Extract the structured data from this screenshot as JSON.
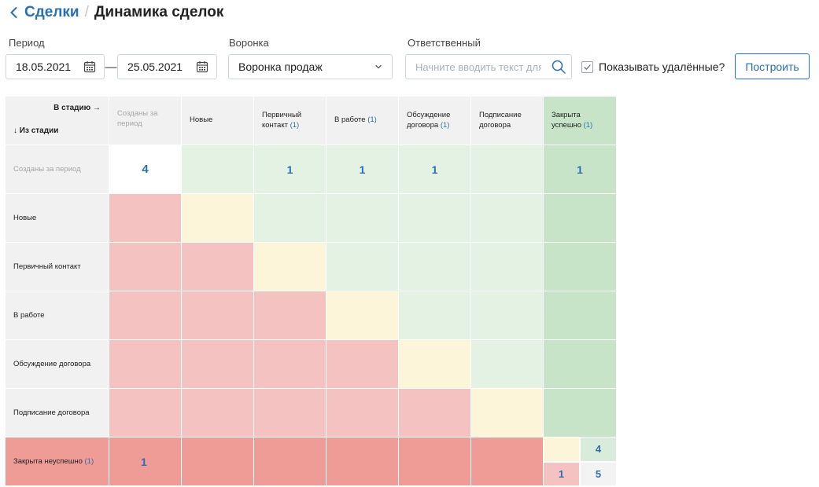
{
  "breadcrumb": {
    "back_link": "Сделки",
    "separator": "/",
    "title": "Динамика сделок"
  },
  "filters": {
    "period_label": "Период",
    "date_from": "18.05.2021",
    "date_to": "25.05.2021",
    "date_separator": "—",
    "funnel_label": "Воронка",
    "funnel_value": "Воронка продаж",
    "responsible_label": "Ответственный",
    "responsible_placeholder": "Начните вводить текст для поиска",
    "show_deleted_label": "Показывать удалённые?",
    "show_deleted_checked": true,
    "build_button": "Построить"
  },
  "matrix": {
    "corner_to": "В стадию →",
    "corner_from": "↓ Из стадии",
    "columns": {
      "created": {
        "label": "Созданы за период"
      },
      "new": {
        "label": "Новые"
      },
      "primary": {
        "label": "Первичный контакт",
        "count": "(1)"
      },
      "work": {
        "label": "В работе",
        "count": "(1)"
      },
      "contract": {
        "label": "Обсуждение договора",
        "count": "(1)"
      },
      "signing": {
        "label": "Подписание договора"
      },
      "won": {
        "label": "Закрыта успешно",
        "count": "(1)"
      }
    },
    "rows": {
      "created": {
        "label": "Созданы за период",
        "values": {
          "created": "4",
          "primary": "1",
          "work": "1",
          "contract": "1",
          "won": "1"
        }
      },
      "new": {
        "label": "Новые"
      },
      "primary": {
        "label": "Первичный контакт"
      },
      "work": {
        "label": "В работе"
      },
      "contract": {
        "label": "Обсуждение договора"
      },
      "signing": {
        "label": "Подписание договора"
      },
      "lost": {
        "label": "Закрыта неуспешно",
        "count": "(1)",
        "values": {
          "created": "1"
        }
      }
    },
    "totals": {
      "won_total": "4",
      "lost_total": "1",
      "grand_total": "5"
    }
  },
  "colors": {
    "accent": "#2a6fb0",
    "header_bg": "#f1f1f1",
    "forward_light_green": "#e4f2e4",
    "won_green": "#c8e4c8",
    "same_stage_yellow": "#fdf5da",
    "backward_red": "#f4c3c1",
    "lost_red": "#ef9b96"
  },
  "icons": [
    "chevron-left-icon",
    "calendar-icon",
    "chevron-down-icon",
    "search-icon",
    "checkmark-icon"
  ]
}
